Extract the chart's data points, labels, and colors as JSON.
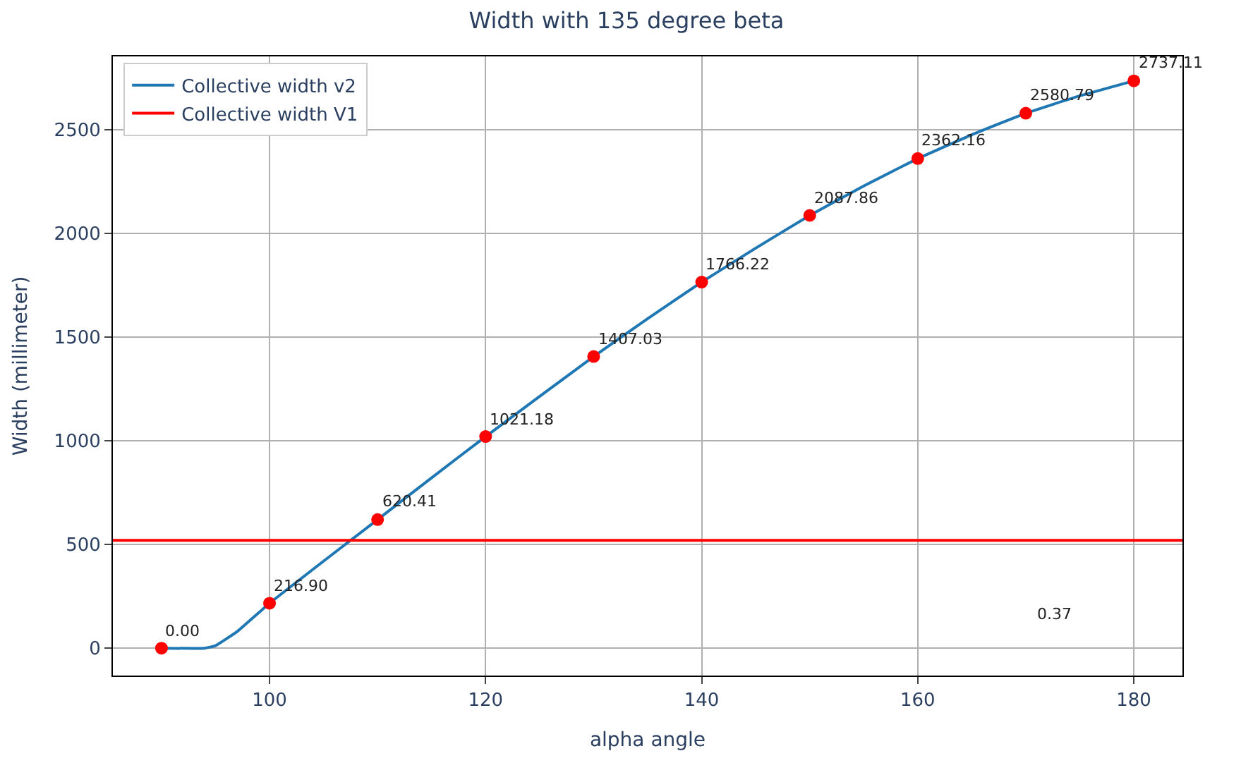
{
  "chart_data": {
    "type": "line",
    "title": "Width with 135 degree beta",
    "xlabel": "alpha angle",
    "ylabel": "Width (millimeter)",
    "xlim": [
      85.5,
      184.5
    ],
    "xticks": [
      100,
      120,
      140,
      160,
      180
    ],
    "ylim": [
      -132,
      2855
    ],
    "yticks": [
      0,
      500,
      1000,
      1500,
      2000,
      2500
    ],
    "grid": true,
    "legend": "top left",
    "annotations": [
      "0.37"
    ],
    "series": [
      {
        "name": "Collective width v2",
        "color": "#1f77b4",
        "marker": "none",
        "x": [
          90,
          94,
          95,
          97,
          100,
          105,
          110,
          115,
          120,
          125,
          130,
          135,
          140,
          145,
          150,
          155,
          160,
          165,
          170,
          175,
          180
        ],
        "values": [
          0,
          0,
          12,
          80,
          216.9,
          420,
          620.41,
          822,
          1021.18,
          1215,
          1407.03,
          1590,
          1766.22,
          1930,
          2087.86,
          2230,
          2362.16,
          2477,
          2580.79,
          2665,
          2737.11
        ]
      },
      {
        "name": "Collective width V1",
        "color": "#ff0000",
        "marker": "none",
        "x": [
          85.5,
          184.5
        ],
        "values": [
          520,
          520
        ]
      },
      {
        "type": "scatter",
        "color": "#ff0000",
        "marker": "circle",
        "x": [
          90,
          100,
          110,
          120,
          130,
          140,
          150,
          160,
          170,
          180
        ],
        "values": [
          0,
          216.9,
          620.41,
          1021.18,
          1407.03,
          1766.22,
          2087.86,
          2362.16,
          2580.79,
          2737.11
        ],
        "value_labels": [
          "0.00",
          "216.90",
          "620.41",
          "1021.18",
          "1407.03",
          "1766.22",
          "2087.86",
          "2362.16",
          "2580.79",
          "2737.11"
        ]
      }
    ]
  }
}
